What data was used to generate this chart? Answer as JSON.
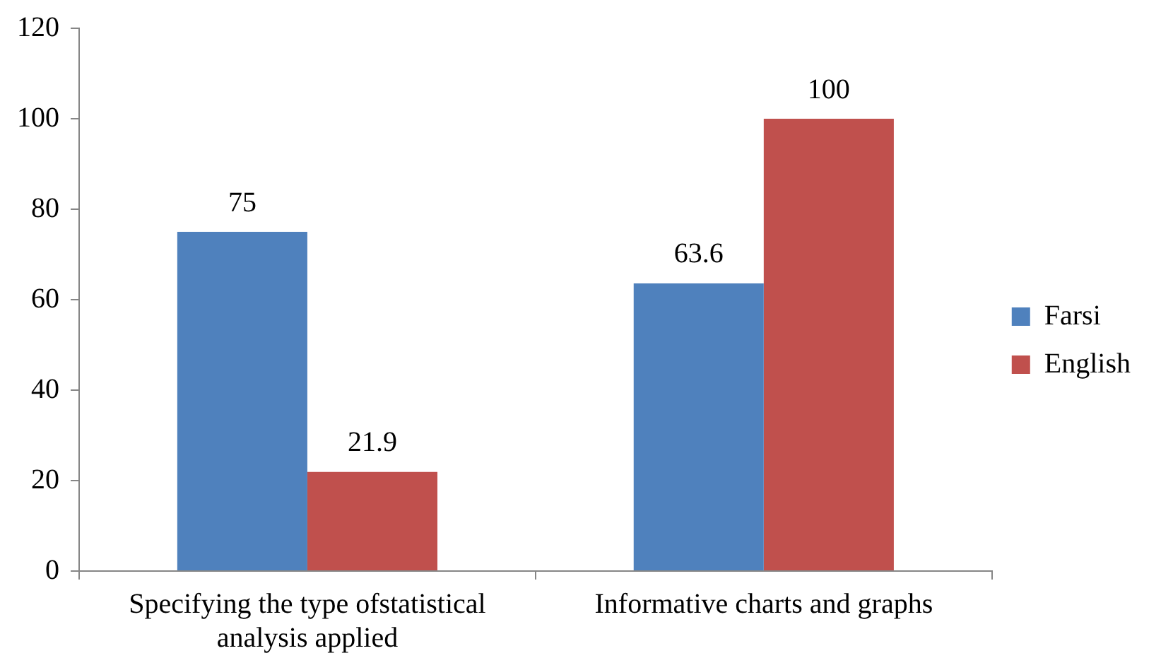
{
  "chart_data": {
    "type": "bar",
    "categories": [
      "Specifying the type ofstatistical analysis applied",
      "Informative charts and graphs"
    ],
    "series": [
      {
        "name": "Farsi",
        "color": "#4f81bd",
        "values": [
          75,
          63.6
        ]
      },
      {
        "name": "English",
        "color": "#c0504d",
        "values": [
          21.9,
          100
        ]
      }
    ],
    "ylim": [
      0,
      120
    ],
    "yticks": [
      0,
      20,
      40,
      60,
      80,
      100,
      120
    ],
    "grid": false,
    "legend": "right",
    "data_labels": true
  }
}
